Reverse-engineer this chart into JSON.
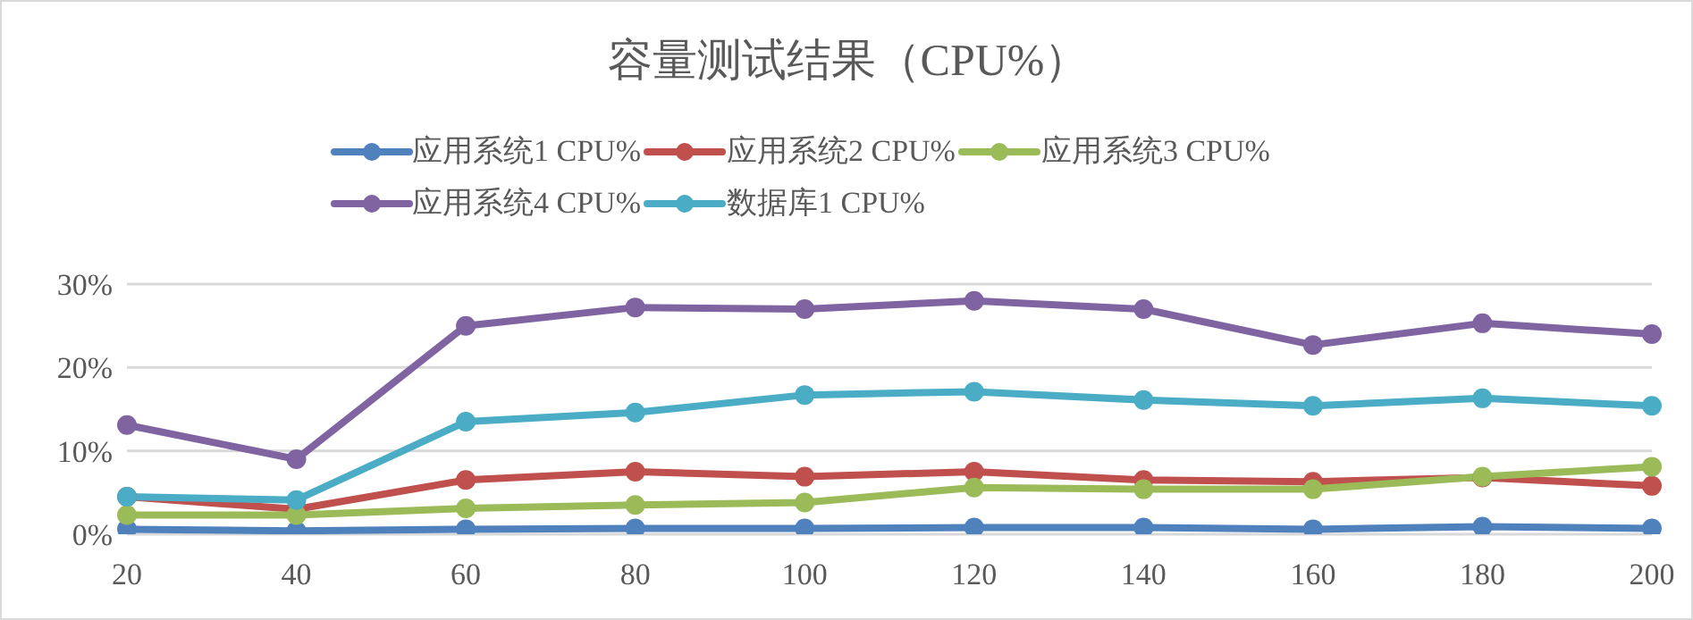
{
  "chart_data": {
    "type": "line",
    "title": "容量测试结果（CPU%）",
    "categories": [
      "20",
      "40",
      "60",
      "80",
      "100",
      "120",
      "140",
      "160",
      "180",
      "200"
    ],
    "series": [
      {
        "name": "应用系统1 CPU%",
        "color": "#4f81bd",
        "values": [
          0.6,
          0.4,
          0.6,
          0.7,
          0.7,
          0.8,
          0.8,
          0.6,
          0.9,
          0.7
        ]
      },
      {
        "name": "应用系统2 CPU%",
        "color": "#c0504d",
        "values": [
          4.5,
          3.0,
          6.5,
          7.5,
          6.9,
          7.5,
          6.5,
          6.3,
          6.8,
          5.8
        ]
      },
      {
        "name": "应用系统3 CPU%",
        "color": "#9bbb59",
        "values": [
          2.3,
          2.3,
          3.1,
          3.5,
          3.8,
          5.6,
          5.4,
          5.4,
          6.9,
          8.1
        ]
      },
      {
        "name": "应用系统4 CPU%",
        "color": "#8064a2",
        "values": [
          13.1,
          9.0,
          25.0,
          27.2,
          27.0,
          28.0,
          27.0,
          22.7,
          25.3,
          24.0
        ]
      },
      {
        "name": "数据库1 CPU%",
        "color": "#4bacc6",
        "values": [
          4.5,
          4.1,
          13.5,
          14.6,
          16.7,
          17.1,
          16.1,
          15.4,
          16.3,
          15.4
        ]
      }
    ],
    "ylim": [
      0,
      30
    ],
    "yticks": [
      {
        "value": 0,
        "label": "0%"
      },
      {
        "value": 10,
        "label": "10%"
      },
      {
        "value": 20,
        "label": "20%"
      },
      {
        "value": 30,
        "label": "30%"
      }
    ],
    "grid": "y",
    "legend": "top",
    "marker": "circle",
    "line_style": "solid"
  }
}
